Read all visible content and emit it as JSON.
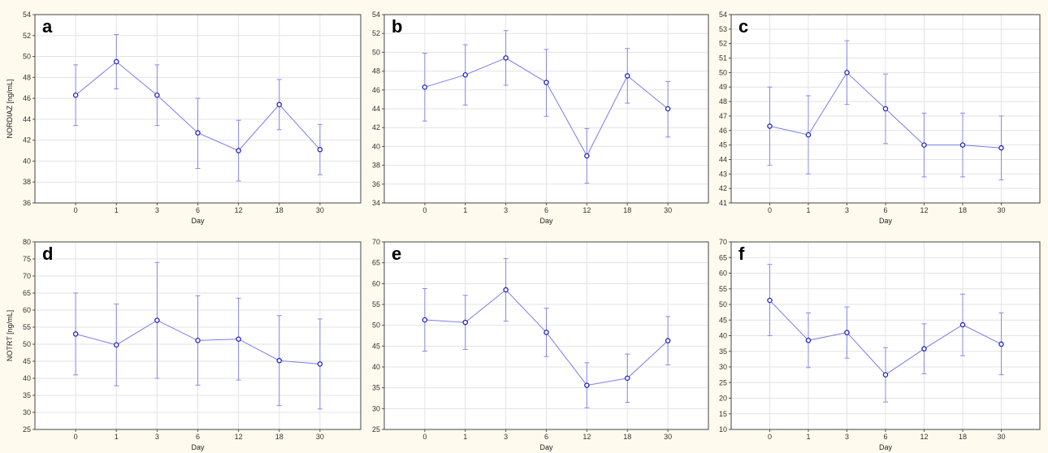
{
  "colors": {
    "page_background": "#fffaee",
    "plot_background": "#ffffff",
    "series_line": "#7b7bf0",
    "marker_edge": "#2020c8",
    "error_bar": "#8888ee",
    "grid": "#e3e3e3"
  },
  "chart_data": [
    {
      "type": "line",
      "panel_label": "a",
      "categories": [
        "0",
        "1",
        "3",
        "6",
        "12",
        "18",
        "30"
      ],
      "xlabel": "Day",
      "ylabel": "NORDIAZ [ng/mL]",
      "ylim": [
        36,
        54
      ],
      "yticks": [
        36,
        38,
        40,
        42,
        44,
        46,
        48,
        50,
        52,
        54
      ],
      "grid": true,
      "series": [
        {
          "values": [
            46.3,
            49.5,
            46.3,
            42.7,
            41.0,
            45.4,
            41.1
          ],
          "lower": [
            43.4,
            46.9,
            43.4,
            39.3,
            38.1,
            43.0,
            38.7
          ],
          "upper": [
            49.2,
            52.1,
            49.2,
            46.0,
            43.9,
            47.8,
            43.5
          ]
        }
      ]
    },
    {
      "type": "line",
      "panel_label": "b",
      "categories": [
        "0",
        "1",
        "3",
        "6",
        "12",
        "18",
        "30"
      ],
      "xlabel": "Day",
      "ylabel": "",
      "ylim": [
        34,
        54
      ],
      "yticks": [
        34,
        36,
        38,
        40,
        42,
        44,
        46,
        48,
        50,
        52,
        54
      ],
      "grid": true,
      "series": [
        {
          "values": [
            46.3,
            47.6,
            49.4,
            46.8,
            39.0,
            47.5,
            44.0
          ],
          "lower": [
            42.7,
            44.4,
            46.5,
            43.2,
            36.1,
            44.6,
            41.0
          ],
          "upper": [
            49.9,
            50.8,
            52.3,
            50.3,
            41.9,
            50.4,
            46.9
          ]
        }
      ]
    },
    {
      "type": "line",
      "panel_label": "c",
      "categories": [
        "0",
        "1",
        "3",
        "6",
        "12",
        "18",
        "30"
      ],
      "xlabel": "Day",
      "ylabel": "",
      "ylim": [
        41,
        54
      ],
      "yticks": [
        41,
        42,
        43,
        44,
        45,
        46,
        47,
        48,
        49,
        50,
        51,
        52,
        53,
        54
      ],
      "grid": true,
      "series": [
        {
          "values": [
            46.3,
            45.7,
            50.0,
            47.5,
            45.0,
            45.0,
            44.8
          ],
          "lower": [
            43.6,
            43.0,
            47.8,
            45.1,
            42.8,
            42.8,
            42.6
          ],
          "upper": [
            49.0,
            48.4,
            52.2,
            49.9,
            47.2,
            47.2,
            47.0
          ]
        }
      ]
    },
    {
      "type": "line",
      "panel_label": "d",
      "categories": [
        "0",
        "1",
        "3",
        "6",
        "12",
        "18",
        "30"
      ],
      "xlabel": "Day",
      "ylabel": "NOTRT [ng/mL]",
      "ylim": [
        25,
        80
      ],
      "yticks": [
        25,
        30,
        35,
        40,
        45,
        50,
        55,
        60,
        65,
        70,
        75,
        80
      ],
      "grid": true,
      "series": [
        {
          "values": [
            53.0,
            49.8,
            57.0,
            51.1,
            51.5,
            45.2,
            44.2
          ],
          "lower": [
            41.0,
            37.8,
            40.0,
            38.0,
            39.5,
            32.0,
            31.0
          ],
          "upper": [
            65.0,
            61.8,
            74.0,
            64.2,
            63.5,
            58.4,
            57.4
          ]
        }
      ]
    },
    {
      "type": "line",
      "panel_label": "e",
      "categories": [
        "0",
        "1",
        "3",
        "6",
        "12",
        "18",
        "30"
      ],
      "xlabel": "Day",
      "ylabel": "",
      "ylim": [
        25,
        70
      ],
      "yticks": [
        25,
        30,
        35,
        40,
        45,
        50,
        55,
        60,
        65,
        70
      ],
      "grid": true,
      "series": [
        {
          "values": [
            51.3,
            50.7,
            58.5,
            48.3,
            35.6,
            37.3,
            46.3
          ],
          "lower": [
            43.8,
            44.2,
            51.0,
            42.5,
            30.2,
            31.5,
            40.5
          ],
          "upper": [
            58.8,
            57.2,
            66.0,
            54.1,
            41.0,
            43.1,
            52.1
          ]
        }
      ]
    },
    {
      "type": "line",
      "panel_label": "f",
      "categories": [
        "0",
        "1",
        "3",
        "6",
        "12",
        "18",
        "30"
      ],
      "xlabel": "Day",
      "ylabel": "",
      "ylim": [
        10,
        70
      ],
      "yticks": [
        10,
        15,
        20,
        25,
        30,
        35,
        40,
        45,
        50,
        55,
        60,
        65,
        70
      ],
      "grid": true,
      "series": [
        {
          "values": [
            51.3,
            38.5,
            41.0,
            27.5,
            35.8,
            43.5,
            37.3
          ],
          "lower": [
            40.0,
            29.8,
            32.8,
            18.8,
            27.8,
            33.6,
            27.5
          ],
          "upper": [
            62.8,
            47.3,
            49.2,
            36.2,
            43.8,
            53.3,
            47.3
          ]
        }
      ]
    }
  ]
}
